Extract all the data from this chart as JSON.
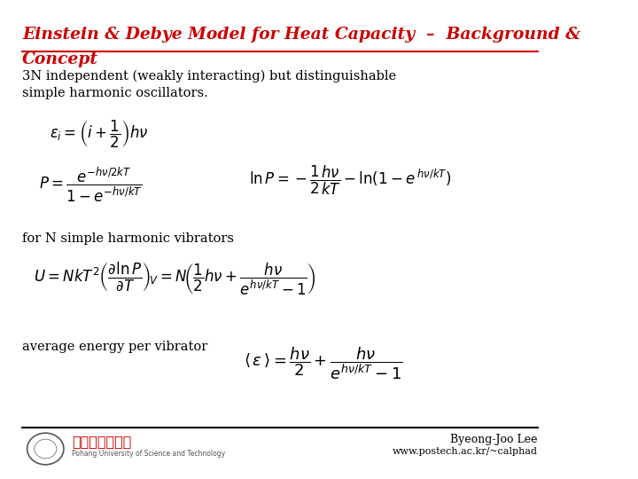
{
  "title_line1": "Einstein & Debye Model for Heat Capacity  –  Background &",
  "title_line2": "Concept",
  "title_color": "#cc0000",
  "title_underline_color": "#cc0000",
  "bg_color": "#ffffff",
  "text_color": "#000000",
  "body_text1": "3N independent (weakly interacting) but distinguishable",
  "body_text2": "simple harmonic oscillators.",
  "label_vibrators": "for N simple harmonic vibrators",
  "label_average": "average energy per vibrator",
  "footer_right1": "Byeong-Joo Lee",
  "footer_right2": "www.postech.ac.kr/~calphad",
  "footer_line_color": "#000000",
  "postech_text": "포항공과대학교",
  "footer_sub": "Pohang University of Science and Technology"
}
